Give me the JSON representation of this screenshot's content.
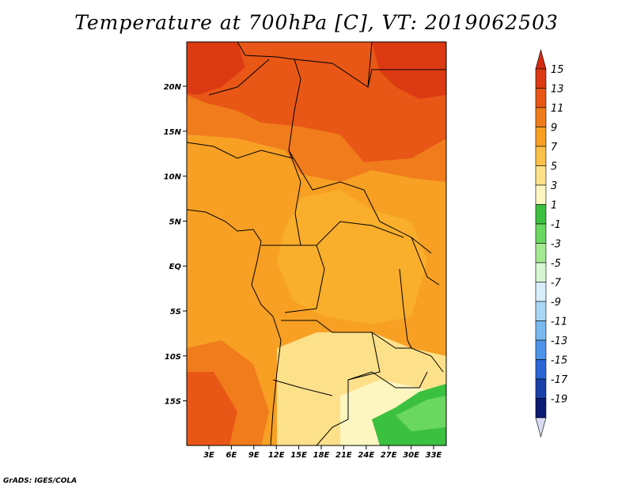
{
  "title": "Temperature at 700hPa [C], VT: 2019062503",
  "credit": "GrADS: IGES/COLA",
  "map": {
    "y_axis_labels": [
      "20N",
      "15N",
      "10N",
      "5N",
      "EQ",
      "5S",
      "10S",
      "15S"
    ],
    "x_axis_labels": [
      "3E",
      "6E",
      "9E",
      "12E",
      "15E",
      "18E",
      "21E",
      "24E",
      "27E",
      "30E",
      "33E"
    ]
  },
  "colorbar": {
    "labels": [
      "15",
      "13",
      "11",
      "9",
      "7",
      "5",
      "3",
      "1",
      "-1",
      "-3",
      "-5",
      "-7",
      "-9",
      "-11",
      "-13",
      "-15",
      "-17",
      "-19"
    ],
    "colors": [
      "#dc3a12",
      "#e85716",
      "#f17c1c",
      "#f7a024",
      "#fbc04a",
      "#fde08a",
      "#fef6c0",
      "#3cc040",
      "#6ad760",
      "#a3ea93",
      "#d6f5d0",
      "#d7eefa",
      "#a9d6f6",
      "#78b9f0",
      "#4d94ea",
      "#2a66d4",
      "#1b3fa8",
      "#0b1a72"
    ],
    "top_triangle_color": "#d42a10",
    "bottom_triangle_color": "#d9dcf2"
  }
}
